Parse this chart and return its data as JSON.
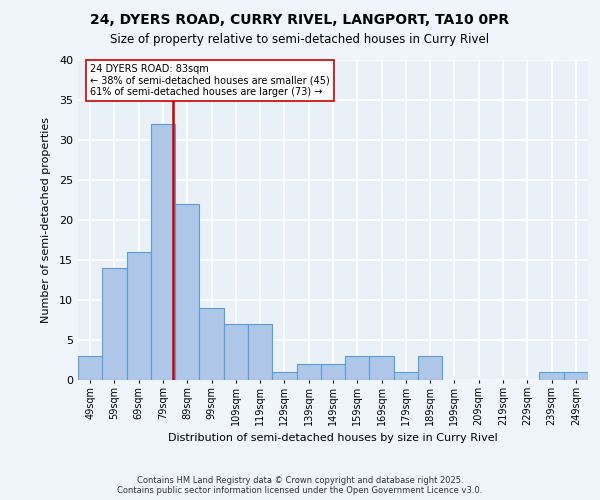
{
  "title1": "24, DYERS ROAD, CURRY RIVEL, LANGPORT, TA10 0PR",
  "title2": "Size of property relative to semi-detached houses in Curry Rivel",
  "xlabel": "Distribution of semi-detached houses by size in Curry Rivel",
  "ylabel": "Number of semi-detached properties",
  "footnote1": "Contains HM Land Registry data © Crown copyright and database right 2025.",
  "footnote2": "Contains public sector information licensed under the Open Government Licence v3.0.",
  "bar_labels": [
    "49sqm",
    "59sqm",
    "69sqm",
    "79sqm",
    "89sqm",
    "99sqm",
    "109sqm",
    "119sqm",
    "129sqm",
    "139sqm",
    "149sqm",
    "159sqm",
    "169sqm",
    "179sqm",
    "189sqm",
    "199sqm",
    "209sqm",
    "219sqm",
    "229sqm",
    "239sqm",
    "249sqm"
  ],
  "bar_values": [
    3,
    14,
    16,
    32,
    22,
    9,
    7,
    7,
    1,
    2,
    2,
    3,
    3,
    1,
    3,
    0,
    0,
    0,
    0,
    1,
    1
  ],
  "bar_color": "#aec6e8",
  "bar_edge_color": "#5a9fd4",
  "bg_color": "#eaf0f8",
  "fig_bg_color": "#f0f4fb",
  "grid_color": "#ffffff",
  "vline_x": 83,
  "vline_color": "#cc0000",
  "annotation_title": "24 DYERS ROAD: 83sqm",
  "annotation_line1": "← 38% of semi-detached houses are smaller (45)",
  "annotation_line2": "61% of semi-detached houses are larger (73) →",
  "annotation_box_color": "#ffffff",
  "annotation_box_edge": "#cc0000",
  "ylim": [
    0,
    40
  ],
  "xlim_min": 44,
  "xlim_max": 254,
  "bin_width": 10,
  "bin_centers": [
    49,
    59,
    69,
    79,
    89,
    99,
    109,
    119,
    129,
    139,
    149,
    159,
    169,
    179,
    189,
    199,
    209,
    219,
    229,
    239,
    249
  ]
}
